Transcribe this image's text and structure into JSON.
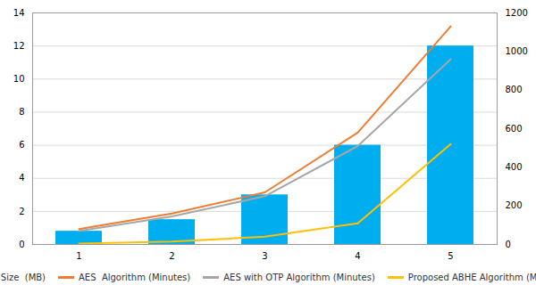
{
  "chart_data": {
    "type": "bar",
    "x": [
      1,
      2,
      3,
      4,
      5
    ],
    "xlim": [
      0.5,
      5.5
    ],
    "xticks": [
      1,
      2,
      3,
      4,
      5
    ],
    "ylim": [
      0,
      14
    ],
    "yticks": [
      0,
      2,
      4,
      6,
      8,
      10,
      12,
      14
    ],
    "y2lim": [
      0,
      1200
    ],
    "y2ticks": [
      0,
      200,
      400,
      600,
      800,
      1000,
      1200
    ],
    "grid": true,
    "legend": "bottom",
    "series": [
      {
        "name": "File Size  (MB)",
        "type": "bar",
        "color": "#00AEEF",
        "values": [
          0.8,
          1.5,
          3.0,
          6.0,
          12.0
        ]
      },
      {
        "name": "AES  Algorithm (Minutes)",
        "type": "line",
        "axis": "y2",
        "color": "#ED7D31",
        "values": [
          80,
          160,
          270,
          580,
          1130
        ]
      },
      {
        "name": "AES with OTP Algorithm (Minutes)",
        "type": "line",
        "axis": "y2",
        "color": "#A6A6A6",
        "values": [
          70,
          145,
          250,
          510,
          960
        ]
      },
      {
        "name": "Proposed ABHE Algorithm (Minutes)",
        "type": "line",
        "axis": "y2",
        "color": "#FFC000",
        "values": [
          5,
          15,
          40,
          110,
          520
        ]
      }
    ]
  }
}
